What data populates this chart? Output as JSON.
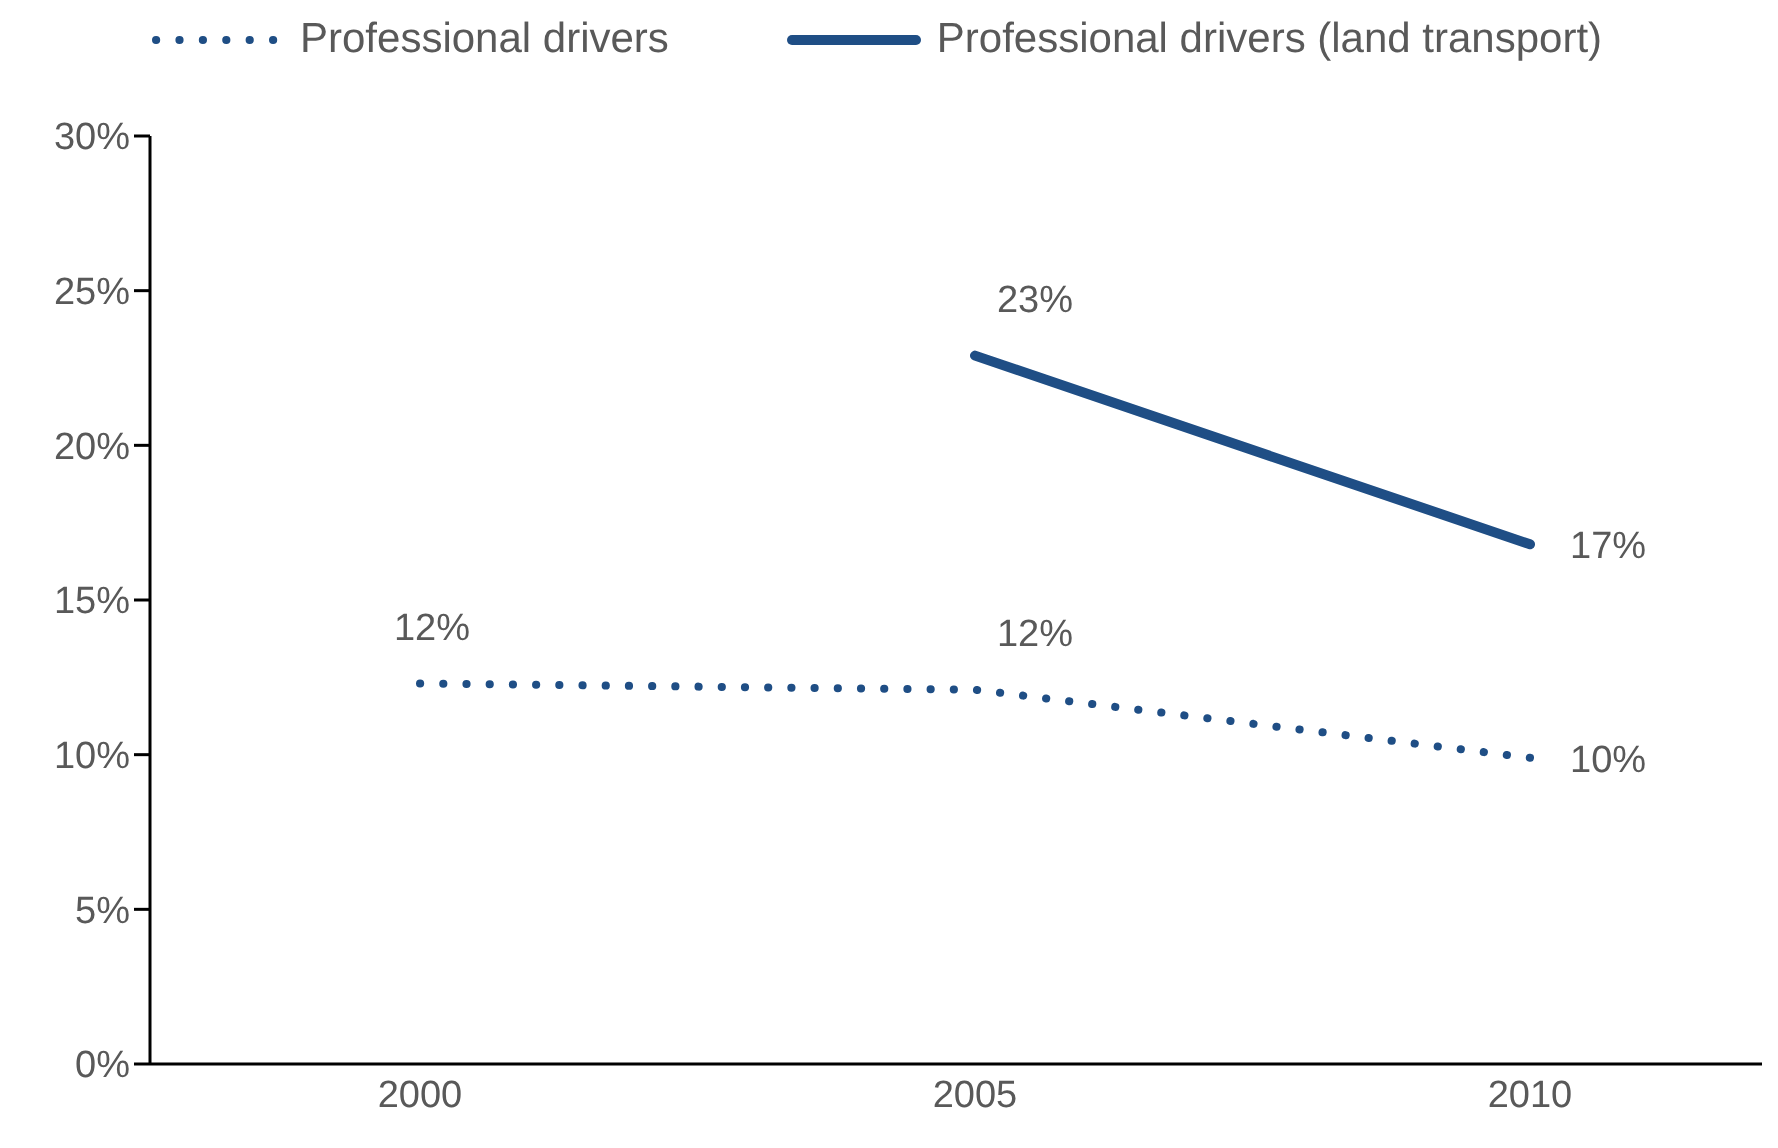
{
  "chart_data": {
    "type": "line",
    "categories": [
      "2000",
      "2005",
      "2010"
    ],
    "series": [
      {
        "name": "Professional drivers",
        "color": "#1f4e85",
        "line_style": "dotted",
        "values": [
          12.3,
          12.1,
          9.9
        ],
        "value_labels": [
          "12%",
          "12%",
          "10%"
        ]
      },
      {
        "name": "Professional drivers (land transport)",
        "color": "#1f4e85",
        "line_style": "solid",
        "values": [
          null,
          22.9,
          16.8
        ],
        "value_labels": [
          null,
          "23%",
          "17%"
        ]
      }
    ],
    "ylim": [
      0,
      30
    ],
    "yticks": [
      {
        "value": 0,
        "label": "0%"
      },
      {
        "value": 5,
        "label": "5%"
      },
      {
        "value": 10,
        "label": "10%"
      },
      {
        "value": 15,
        "label": "15%"
      },
      {
        "value": 20,
        "label": "20%"
      },
      {
        "value": 25,
        "label": "25%"
      },
      {
        "value": 30,
        "label": "30%"
      }
    ],
    "legend": "top"
  }
}
